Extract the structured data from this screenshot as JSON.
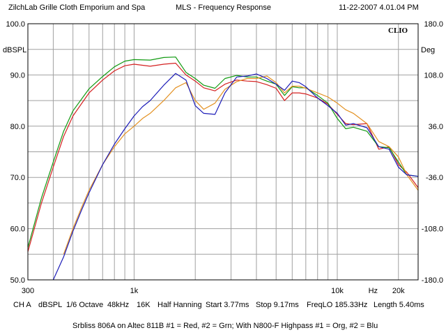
{
  "header": {
    "company": "ZilchLab Grille Cloth Emporium and Spa",
    "measurement": "MLS - Frequency Response",
    "timestamp": "11-22-2007 4.01.04 PM"
  },
  "logo": "CLIO",
  "footer": {
    "settings": [
      "CH A",
      "dBSPL",
      "1/6 Octave",
      "48kHz",
      "16K",
      "Half Hanning",
      "Start 3.77ms",
      "Stop 9.17ms",
      "FreqLO 185.33Hz",
      "Length 5.40ms"
    ],
    "caption": "Srbliss 806A on Altec 811B  #1 = Red, #2 = Grn; With N800-F Highpass #1 = Org, #2 = Blu"
  },
  "colors": {
    "red": "#d42020",
    "green": "#119a11",
    "orange": "#e39020",
    "blue": "#1c1cb8",
    "grid": "#a0a0a0"
  },
  "chart_data": {
    "type": "line",
    "xscale": "log",
    "xlim": [
      300,
      25000
    ],
    "ylim": [
      50,
      100
    ],
    "y2lim": [
      -180,
      180
    ],
    "grid": true,
    "ylabel": "dBSPL",
    "y2label": "Deg",
    "xlabel_unit": "Hz",
    "x_tick_labels": [
      {
        "value": 300,
        "label": "300"
      },
      {
        "value": 1000,
        "label": "1k"
      },
      {
        "value": 10000,
        "label": "10k"
      },
      {
        "value": 15000,
        "label": "Hz"
      },
      {
        "value": 20000,
        "label": "20k"
      }
    ],
    "y_tick_labels": [
      "100.0",
      "90.0",
      "80.0",
      "70.0",
      "60.0",
      "50.0"
    ],
    "y_tick_values": [
      100,
      90,
      80,
      70,
      60,
      50
    ],
    "y2_tick_labels": [
      "180.0",
      "108.0",
      "36.0",
      "-36.0",
      "-108.0",
      "-180.0"
    ],
    "y2_tick_values": [
      180,
      108,
      36,
      -36,
      -108,
      -180
    ],
    "series": [
      {
        "color": "#d42020",
        "x": [
          300,
          350,
          400,
          450,
          500,
          600,
          700,
          800,
          900,
          1000,
          1200,
          1400,
          1600,
          1800,
          2000,
          2200,
          2500,
          2800,
          3200,
          3600,
          4000,
          4500,
          5000,
          5500,
          6000,
          6500,
          7000,
          8000,
          9000,
          10000,
          11000,
          12000,
          14000,
          16000,
          18000,
          20000,
          22000,
          25000
        ],
        "y": [
          55.5,
          65,
          72,
          78,
          82,
          86.5,
          89,
          90.8,
          91.8,
          92.1,
          91.7,
          92.1,
          92.3,
          90,
          88.8,
          87.5,
          86.9,
          88.2,
          89,
          88.8,
          88.7,
          88.1,
          87.4,
          85,
          86.5,
          86.5,
          86.3,
          85.5,
          84.3,
          82.3,
          80.5,
          80.3,
          80.5,
          75.5,
          76,
          72.5,
          71,
          68
        ]
      },
      {
        "color": "#119a11",
        "x": [
          300,
          350,
          400,
          450,
          500,
          600,
          700,
          800,
          900,
          1000,
          1200,
          1400,
          1600,
          1800,
          2000,
          2200,
          2500,
          2800,
          3200,
          3600,
          4000,
          4500,
          5000,
          5500,
          6000,
          6500,
          7000,
          8000,
          9000,
          10000,
          11000,
          12000,
          14000,
          16000,
          18000,
          20000,
          22000,
          25000
        ],
        "y": [
          56.3,
          66,
          73,
          79,
          83,
          87.3,
          89.7,
          91.6,
          92.7,
          93,
          92.9,
          93.4,
          93.5,
          90.5,
          89.3,
          88,
          87.4,
          89.3,
          89.9,
          89.6,
          89.6,
          88.8,
          88.2,
          86,
          87.7,
          87.5,
          87.5,
          86,
          84.5,
          81.5,
          79.5,
          79.8,
          79,
          76,
          75.8,
          73,
          70.5,
          70.2
        ]
      },
      {
        "color": "#e39020",
        "x": [
          450,
          500,
          550,
          600,
          700,
          800,
          900,
          1000,
          1100,
          1200,
          1400,
          1600,
          1800,
          2000,
          2200,
          2500,
          2800,
          3200,
          3600,
          4000,
          4500,
          5000,
          5500,
          6000,
          6500,
          7000,
          8000,
          9000,
          10000,
          11000,
          12000,
          14000,
          16000,
          18000,
          20000,
          22000,
          25000
        ],
        "y": [
          55,
          60,
          64,
          67.5,
          72.5,
          76,
          78.5,
          80,
          81.5,
          82.5,
          85,
          87.5,
          88.5,
          85,
          83.3,
          84.5,
          87.2,
          88.7,
          89.3,
          89.3,
          89.8,
          88.5,
          86.5,
          87.8,
          87.8,
          87.4,
          86.5,
          85.7,
          84.5,
          83.2,
          82.5,
          80.5,
          77,
          76,
          74,
          70.5,
          67.5
        ]
      },
      {
        "color": "#1c1cb8",
        "x": [
          400,
          450,
          500,
          550,
          600,
          700,
          800,
          900,
          1000,
          1100,
          1200,
          1400,
          1600,
          1800,
          2000,
          2200,
          2500,
          2800,
          3200,
          3600,
          4000,
          4500,
          5000,
          5500,
          6000,
          6500,
          7000,
          8000,
          9000,
          10000,
          11000,
          12000,
          14000,
          16000,
          18000,
          20000,
          22000,
          25000
        ],
        "y": [
          50,
          54.5,
          59.5,
          63.5,
          67,
          72.5,
          76.5,
          79.5,
          82,
          83.8,
          85,
          88,
          90.3,
          89,
          84,
          82.5,
          82.3,
          86.5,
          89.6,
          89.8,
          90.2,
          89.3,
          88.2,
          87,
          88.8,
          88.5,
          87.7,
          85.5,
          84,
          82.5,
          80.2,
          80.5,
          79.7,
          76,
          75.5,
          72,
          70.5,
          70.2
        ]
      }
    ]
  }
}
